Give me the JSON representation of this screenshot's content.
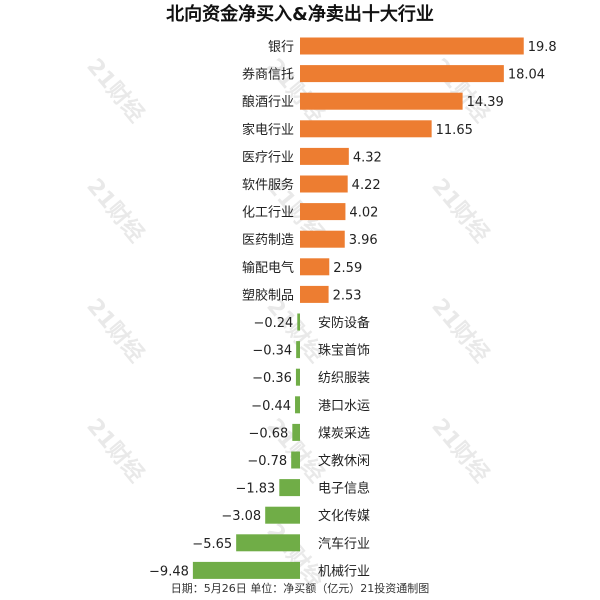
{
  "chart_data": {
    "type": "bar",
    "orientation": "horizontal",
    "title": "北向资金净买入&净卖出十大行业",
    "footer": "日期：5月26日 单位：净买额（亿元）21投资通制图",
    "watermark": "21财经",
    "colors": {
      "positive": "#ed7d31",
      "negative": "#70ad47"
    },
    "categories": [
      "银行",
      "券商信托",
      "酿酒行业",
      "家电行业",
      "医疗行业",
      "软件服务",
      "化工行业",
      "医药制造",
      "输配电气",
      "塑胶制品",
      "安防设备",
      "珠宝首饰",
      "纺织服装",
      "港口水运",
      "煤炭采选",
      "文教休闲",
      "电子信息",
      "文化传媒",
      "汽车行业",
      "机械行业"
    ],
    "values": [
      19.8,
      18.04,
      14.39,
      11.65,
      4.32,
      4.22,
      4.02,
      3.96,
      2.59,
      2.53,
      -0.24,
      -0.34,
      -0.36,
      -0.44,
      -0.68,
      -0.78,
      -1.83,
      -3.08,
      -5.65,
      -9.48
    ],
    "value_labels": [
      "19.8",
      "18.04",
      "14.39",
      "11.65",
      "4.32",
      "4.22",
      "4.02",
      "3.96",
      "2.59",
      "2.53",
      "−0.24",
      "−0.34",
      "−0.36",
      "−0.44",
      "−0.68",
      "−0.78",
      "−1.83",
      "−3.08",
      "−5.65",
      "−9.48"
    ]
  }
}
